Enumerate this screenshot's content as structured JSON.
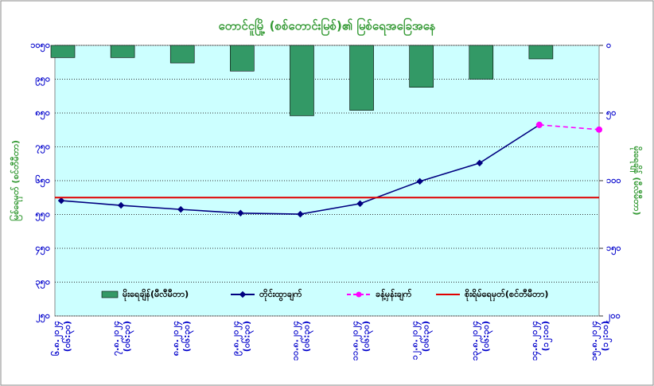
{
  "chart_data": {
    "type": "combo",
    "title": "တောင်ငူမြို့ (စစ်တောင်းမြစ်)၏ မြစ်ရေအခြေအနေ",
    "y_label": "မြစ်ရေမှတ် (စင်တီမီတာ)",
    "y2_label": "မိုးရေချိန် (မီလီမီတာ)",
    "categories": [
      "၆.၈.၂၀၂၄",
      "၇.၈.၂၀၂၄",
      "၈.၈.၂၀၂၄",
      "၉.၈.၂၀၂၄",
      "၁၀.၈.၂၀၂၄",
      "၁၁.၈.၂၀၂၄",
      "၁၂.၈.၂၀၂၄",
      "၁၃.၈.၂၀၂၄",
      "၁၄.၈.၂၀၂၄",
      "၁၅.၈.၂၀၂၄"
    ],
    "category_times": [
      "(၀၆:၃၀)",
      "(၀၆:၃၀)",
      "(၀၆:၃၀)",
      "(၀၆:၃၀)",
      "(၀၆:၃၀)",
      "(၀၆:၃၀)",
      "(၀၆:၃၀)",
      "(၀၆:၃၀)",
      "(၁၂:၀၀)",
      "(၁၂:၀၀)"
    ],
    "ylim": [
      250,
      1050
    ],
    "yticks": [
      {
        "value": 1050,
        "label": "၁၀၅၀"
      },
      {
        "value": 950,
        "label": "၉၅၀"
      },
      {
        "value": 850,
        "label": "၈၅၀"
      },
      {
        "value": 750,
        "label": "၇၅၀"
      },
      {
        "value": 650,
        "label": "၆၅၀"
      },
      {
        "value": 550,
        "label": "၅၅၀"
      },
      {
        "value": 450,
        "label": "၄၅၀"
      },
      {
        "value": 350,
        "label": "၃၅၀"
      },
      {
        "value": 250,
        "label": "၂၅၀"
      }
    ],
    "y2lim": [
      0,
      200
    ],
    "y2_inverted": true,
    "y2ticks": [
      {
        "value": 0,
        "label": "၀"
      },
      {
        "value": 50,
        "label": "၅၀"
      },
      {
        "value": 100,
        "label": "၁၀၀"
      },
      {
        "value": 150,
        "label": "၁၅၀"
      },
      {
        "value": 200,
        "label": "၂၀၀"
      }
    ],
    "grid": true,
    "series": [
      {
        "name": "မိုးရေချိန်(မီလီမီတာ)",
        "type": "bar",
        "axis": "y2",
        "color": "#339966",
        "values": [
          9,
          9,
          13,
          19,
          52,
          48,
          31,
          25,
          10,
          null
        ]
      },
      {
        "name": "တိုင်းထွာချက်",
        "type": "line",
        "color": "#000080",
        "values": [
          591,
          577,
          565,
          554,
          551,
          582,
          648,
          702,
          815,
          null
        ]
      },
      {
        "name": "ခန့်မှန်းချက်",
        "type": "dashed",
        "color": "#ff00ff",
        "values": [
          null,
          null,
          null,
          null,
          null,
          null,
          null,
          null,
          815,
          801
        ]
      },
      {
        "name": "စိုးရိမ်ရေမှတ်(စင်တီမီတာ)",
        "type": "hline",
        "color": "#e00000",
        "value": 600
      }
    ]
  }
}
